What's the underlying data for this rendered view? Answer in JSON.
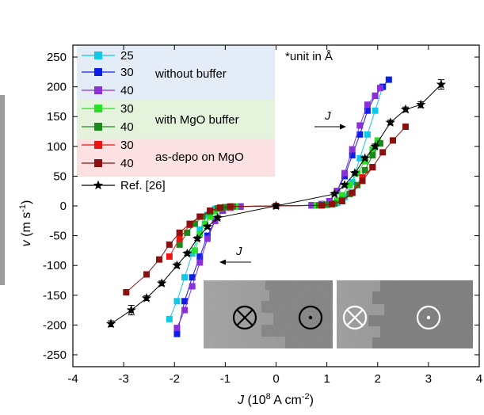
{
  "chart_data": {
    "type": "scatter",
    "xlabel": {
      "prefix": "J",
      "mid": " (10",
      "exp": "8",
      "mid2": " A cm",
      "exp2": "-2",
      "suffix": ")"
    },
    "ylabel": {
      "prefix": "v",
      "mid": " (m s",
      "exp": "-1",
      "suffix": ")"
    },
    "xlim": [
      -4,
      4
    ],
    "ylim": [
      -270,
      270
    ],
    "x_ticks": [
      -4,
      -3,
      -2,
      -1,
      0,
      1,
      2,
      3,
      4
    ],
    "y_ticks": [
      -250,
      -200,
      -150,
      -100,
      -50,
      0,
      50,
      100,
      150,
      200,
      250
    ],
    "note": "*unit in Å",
    "current_label": "J",
    "legend_groups": [
      {
        "label": "without buffer",
        "color": "#e3ecf7"
      },
      {
        "label": "with MgO buffer",
        "color": "#e5f3dd"
      },
      {
        "label": "as-depo on MgO",
        "color": "#fbe1e1"
      }
    ],
    "series": [
      {
        "name": "25",
        "color": "#12c8e8",
        "marker": "square",
        "x": [
          -2.1,
          -1.95,
          -1.8,
          -1.65,
          -1.5,
          -1.35,
          -1.2,
          -1.0,
          -0.7,
          0,
          0.7,
          1.0,
          1.2,
          1.35,
          1.5,
          1.65,
          1.8,
          1.95,
          2.1
        ],
        "y": [
          -190,
          -160,
          -120,
          -80,
          -40,
          -15,
          -5,
          -2,
          -1,
          0,
          1,
          2,
          5,
          15,
          40,
          80,
          120,
          160,
          200
        ]
      },
      {
        "name": "30",
        "color": "#0b1fe6",
        "marker": "square",
        "x": [
          -1.95,
          -1.8,
          -1.65,
          -1.5,
          -1.35,
          -1.2,
          -1.05,
          -0.9,
          -0.7,
          0,
          0.7,
          0.9,
          1.05,
          1.2,
          1.35,
          1.5,
          1.65,
          1.8,
          1.95,
          2.1,
          2.22
        ],
        "y": [
          -215,
          -160,
          -120,
          -85,
          -50,
          -25,
          -8,
          -3,
          -1,
          0,
          1,
          3,
          8,
          25,
          50,
          85,
          120,
          160,
          185,
          200,
          212
        ]
      },
      {
        "name": "40",
        "color": "#8b2fd8",
        "marker": "square",
        "x": [
          -1.95,
          -1.8,
          -1.65,
          -1.5,
          -1.35,
          -1.2,
          -1.05,
          -0.9,
          -0.7,
          0,
          0.7,
          0.9,
          1.05,
          1.2,
          1.35,
          1.5,
          1.65,
          1.8,
          1.95,
          2.05
        ],
        "y": [
          -205,
          -175,
          -135,
          -95,
          -55,
          -25,
          -8,
          -3,
          -1,
          0,
          1,
          3,
          8,
          25,
          55,
          95,
          135,
          170,
          185,
          198
        ]
      },
      {
        "name": "30",
        "color": "#28e028",
        "marker": "square",
        "x": [
          -1.6,
          -1.5,
          -1.4,
          -1.3,
          -1.2,
          -1.1,
          -0.95,
          -0.8,
          0,
          0.8,
          0.95,
          1.1,
          1.2,
          1.3,
          1.45,
          1.6,
          1.75,
          1.9,
          2.0
        ],
        "y": [
          -75,
          -48,
          -30,
          -18,
          -9,
          -4,
          -2,
          -1,
          0,
          1,
          2,
          4,
          9,
          18,
          35,
          55,
          75,
          95,
          110
        ]
      },
      {
        "name": "40",
        "color": "#1a8a1a",
        "marker": "square",
        "x": [
          -1.9,
          -1.75,
          -1.6,
          -1.45,
          -1.3,
          -1.15,
          -1.0,
          -0.85,
          0,
          0.85,
          1.0,
          1.15,
          1.3,
          1.45,
          1.6,
          1.75,
          1.9,
          2.05
        ],
        "y": [
          -65,
          -45,
          -30,
          -18,
          -10,
          -4,
          -2,
          -1,
          0,
          1,
          2,
          4,
          10,
          20,
          35,
          60,
          85,
          105
        ]
      },
      {
        "name": "30",
        "color": "#ee1414",
        "marker": "square",
        "x": [
          -2.1,
          -1.9,
          -1.7,
          -1.5,
          -1.3,
          -1.1,
          -0.9,
          0,
          0.9,
          1.1,
          1.3,
          1.5,
          1.7,
          1.9
        ],
        "y": [
          -85,
          -55,
          -32,
          -18,
          -8,
          -3,
          -1,
          0,
          1,
          3,
          8,
          22,
          48,
          65
        ]
      },
      {
        "name": "40",
        "color": "#8b1010",
        "marker": "square",
        "x": [
          -2.95,
          -2.55,
          -2.3,
          -2.1,
          -1.9,
          -1.7,
          -1.5,
          -1.3,
          -1.1,
          -0.9,
          0,
          0.9,
          1.1,
          1.3,
          1.5,
          1.7,
          1.9,
          2.1,
          2.3,
          2.55
        ],
        "y": [
          -145,
          -115,
          -90,
          -65,
          -45,
          -30,
          -18,
          -8,
          -3,
          -1,
          0,
          1,
          3,
          8,
          22,
          42,
          65,
          90,
          110,
          133
        ]
      },
      {
        "name": "Ref. [26]",
        "color": "#000000",
        "marker": "star",
        "x": [
          -3.25,
          -2.85,
          -2.55,
          -2.25,
          -1.95,
          -1.75,
          -1.55,
          -1.35,
          -1.15,
          0,
          1.15,
          1.35,
          1.55,
          1.75,
          1.95,
          2.25,
          2.55,
          2.85,
          3.25
        ],
        "y": [
          -198,
          -175,
          -155,
          -130,
          -100,
          -80,
          -55,
          -35,
          -20,
          0,
          20,
          35,
          55,
          80,
          100,
          140,
          162,
          170,
          204
        ],
        "err_y": [
          5,
          8,
          4,
          4,
          4,
          3,
          3,
          3,
          3,
          0,
          3,
          3,
          3,
          3,
          4,
          4,
          4,
          5,
          8
        ]
      }
    ],
    "inset_images": [
      {
        "label": "domain-wall MOKE image (without buffer)"
      },
      {
        "label": "domain-wall MOKE image (with MgO buffer)"
      }
    ]
  }
}
